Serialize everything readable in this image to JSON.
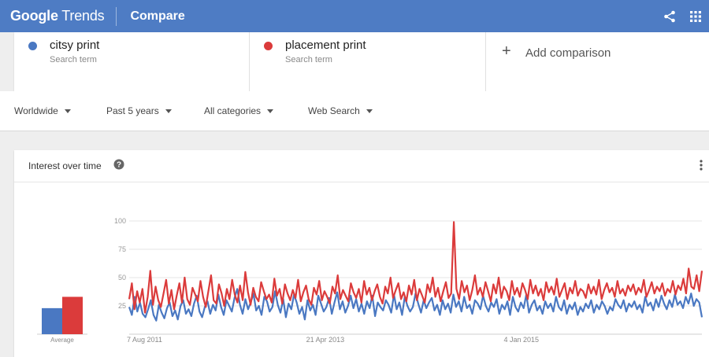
{
  "header": {
    "logo_google": "Google",
    "logo_trends": "Trends",
    "title": "Compare",
    "icons": [
      "share-icon",
      "apps-icon"
    ]
  },
  "terms": [
    {
      "name": "citsy print",
      "sub": "Search term",
      "color": "#4a78c2"
    },
    {
      "name": "placement print",
      "sub": "Search term",
      "color": "#db3b3b"
    }
  ],
  "add_comparison": {
    "plus": "+",
    "label": "Add comparison"
  },
  "filters": [
    {
      "label": "Worldwide"
    },
    {
      "label": "Past 5 years"
    },
    {
      "label": "All categories"
    },
    {
      "label": "Web Search"
    }
  ],
  "card": {
    "title": "Interest over time",
    "help_icon": "help-icon",
    "menu_icon": "more-vert-icon"
  },
  "chart_data": {
    "type": "line",
    "title": "",
    "xlabel": "",
    "ylabel": "",
    "ylim": [
      0,
      100
    ],
    "yticks": [
      100,
      75,
      50,
      25
    ],
    "x_range": [
      "2011-08-07",
      "2016-07-31"
    ],
    "x_ticks": [
      {
        "date": "2011-08-07",
        "label": "7 Aug 2011"
      },
      {
        "date": "2013-04-21",
        "label": "21 Apr 2013"
      },
      {
        "date": "2015-01-04",
        "label": "4 Jan 2015"
      }
    ],
    "grid": "horizontal",
    "average": {
      "label": "Average",
      "values": [
        23,
        33
      ]
    },
    "series": [
      {
        "name": "citsy print",
        "color": "#4a78c2",
        "values": [
          24,
          17,
          33,
          20,
          28,
          18,
          15,
          22,
          30,
          17,
          12,
          26,
          19,
          14,
          23,
          28,
          16,
          21,
          13,
          25,
          30,
          18,
          22,
          16,
          27,
          34,
          20,
          15,
          24,
          29,
          18,
          26,
          21,
          35,
          24,
          17,
          30,
          25,
          20,
          32,
          40,
          26,
          18,
          31,
          22,
          28,
          36,
          21,
          25,
          17,
          33,
          29,
          20,
          24,
          38,
          26,
          19,
          31,
          15,
          27,
          22,
          35,
          28,
          18,
          24,
          13,
          30,
          21,
          26,
          17,
          34,
          27,
          20,
          24,
          32,
          18,
          28,
          37,
          22,
          29,
          19,
          25,
          34,
          23,
          31,
          20,
          27,
          18,
          29,
          23,
          34,
          16,
          28,
          24,
          21,
          30,
          26,
          19,
          35,
          22,
          28,
          17,
          33,
          25,
          20,
          24,
          36,
          27,
          19,
          30,
          23,
          28,
          32,
          21,
          26,
          17,
          30,
          22,
          27,
          19,
          35,
          24,
          29,
          20,
          33,
          23,
          26,
          18,
          30,
          27,
          22,
          34,
          25,
          20,
          28,
          24,
          31,
          18,
          26,
          22,
          29,
          17,
          33,
          24,
          20,
          28,
          23,
          35,
          19,
          26,
          30,
          21,
          25,
          18,
          29,
          23,
          27,
          20,
          33,
          24,
          21,
          30,
          18,
          26,
          22,
          28,
          17,
          24,
          20,
          27,
          23,
          30,
          19,
          26,
          22,
          29,
          25,
          18,
          24,
          21,
          31,
          26,
          23,
          30,
          20,
          27,
          24,
          29,
          22,
          26,
          19,
          33,
          25,
          28,
          21,
          31,
          24,
          34,
          27,
          22,
          30,
          24,
          35,
          26,
          29,
          23,
          33,
          27,
          36,
          25,
          31,
          28,
          15
        ],
        "color_note": ""
      },
      {
        "name": "placement print",
        "color": "#db3b3b",
        "values": [
          31,
          45,
          22,
          38,
          28,
          40,
          19,
          33,
          56,
          26,
          42,
          30,
          24,
          36,
          48,
          27,
          39,
          22,
          34,
          45,
          28,
          50,
          31,
          26,
          41,
          35,
          29,
          47,
          33,
          24,
          38,
          52,
          30,
          27,
          44,
          36,
          25,
          40,
          31,
          48,
          35,
          28,
          43,
          30,
          55,
          37,
          26,
          41,
          33,
          29,
          46,
          38,
          31,
          35,
          28,
          49,
          34,
          40,
          27,
          44,
          36,
          30,
          39,
          32,
          48,
          29,
          37,
          43,
          31,
          26,
          41,
          35,
          47,
          30,
          38,
          33,
          27,
          42,
          36,
          52,
          31,
          39,
          34,
          29,
          45,
          37,
          32,
          40,
          28,
          47,
          35,
          41,
          30,
          38,
          44,
          33,
          27,
          42,
          36,
          50,
          32,
          39,
          45,
          31,
          37,
          29,
          43,
          35,
          48,
          30,
          40,
          34,
          28,
          44,
          37,
          50,
          33,
          41,
          29,
          38,
          46,
          32,
          36,
          99,
          40,
          31,
          47,
          37,
          43,
          30,
          39,
          52,
          35,
          41,
          33,
          46,
          38,
          29,
          44,
          36,
          50,
          32,
          42,
          38,
          30,
          47,
          35,
          41,
          33,
          45,
          39,
          31,
          48,
          36,
          43,
          34,
          40,
          30,
          46,
          37,
          42,
          35,
          49,
          33,
          39,
          45,
          31,
          41,
          36,
          47,
          34,
          40,
          38,
          32,
          44,
          36,
          42,
          35,
          48,
          31,
          39,
          45,
          37,
          41,
          33,
          47,
          36,
          40,
          34,
          43,
          38,
          44,
          35,
          41,
          37,
          48,
          33,
          39,
          46,
          36,
          42,
          38,
          45,
          34,
          40,
          37,
          47,
          35,
          43,
          39,
          49,
          36,
          58,
          42,
          40,
          52,
          38,
          56
        ]
      }
    ]
  }
}
